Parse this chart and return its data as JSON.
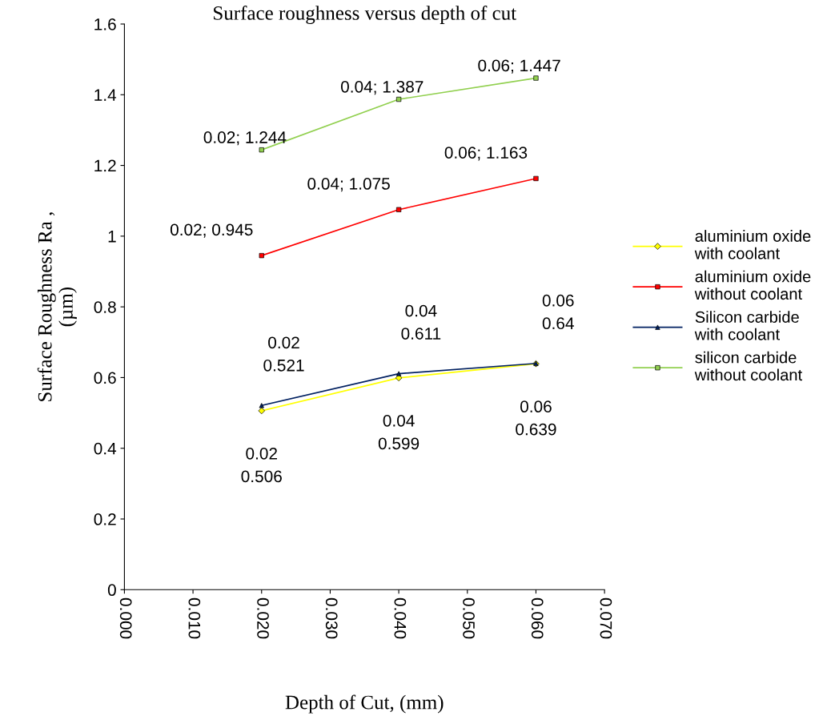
{
  "chart_data": {
    "type": "line",
    "title": "Surface roughness versus depth of cut",
    "xlabel": "Depth of Cut, (mm)",
    "ylabel": "Surface Roughness Ra ,\n(µm)",
    "x": [
      0.02,
      0.04,
      0.06
    ],
    "series": [
      {
        "name": "aluminium oxide\nwith coolant",
        "color": "#ffff00",
        "marker": "diamond",
        "values": [
          0.506,
          0.599,
          0.639
        ],
        "value_labels": [
          "0.02\n0.506",
          "0.04\n0.599",
          "0.06\n0.639"
        ]
      },
      {
        "name": "aluminium oxide\nwithout coolant",
        "color": "#ff0000",
        "marker": "square",
        "values": [
          0.945,
          1.075,
          1.163
        ],
        "value_labels": [
          "0.02; 0.945",
          "0.04; 1.075",
          "0.06; 1.163"
        ]
      },
      {
        "name": "Silicon carbide\nwith coolant",
        "color": "#002060",
        "marker": "triangle",
        "values": [
          0.521,
          0.611,
          0.64
        ],
        "value_labels": [
          "0.02\n0.521",
          "0.04\n0.611",
          "0.06\n0.64"
        ]
      },
      {
        "name": "silicon carbide\nwithout coolant",
        "color": "#92d050",
        "marker": "square",
        "values": [
          1.244,
          1.387,
          1.447
        ],
        "value_labels": [
          "0.02; 1.244",
          "0.04; 1.387",
          "0.06; 1.447"
        ]
      }
    ],
    "xlim": [
      0,
      0.07
    ],
    "xticks": [
      {
        "value": 0,
        "label": "0.000"
      },
      {
        "value": 0.01,
        "label": "0.010"
      },
      {
        "value": 0.02,
        "label": "0.020"
      },
      {
        "value": 0.03,
        "label": "0.030"
      },
      {
        "value": 0.04,
        "label": "0.040"
      },
      {
        "value": 0.05,
        "label": "0.050"
      },
      {
        "value": 0.06,
        "label": "0.060"
      },
      {
        "value": 0.07,
        "label": "0.070"
      }
    ],
    "ylim": [
      0,
      1.6
    ],
    "yticks": [
      0,
      0.2,
      0.4,
      0.6,
      0.8,
      1,
      1.2,
      1.4,
      1.6
    ],
    "grid": false,
    "legend": "right",
    "line_style": "solid"
  }
}
